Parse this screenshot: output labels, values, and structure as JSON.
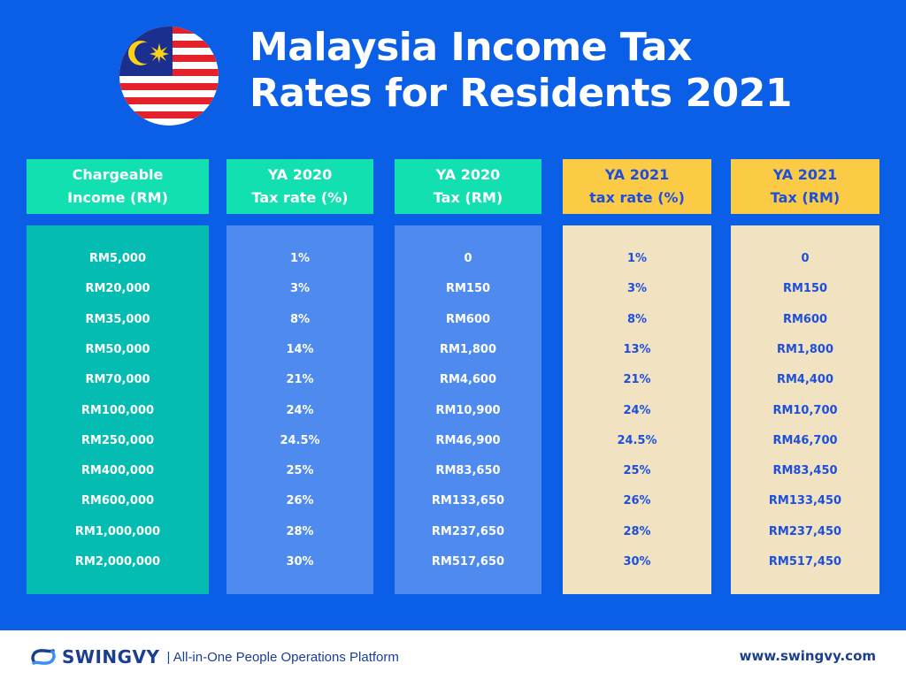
{
  "title": {
    "line1": "Malaysia Income Tax",
    "line2": "Rates for Residents 2021"
  },
  "columns": [
    {
      "header1": "Chargeable",
      "header2": "Income (RM)",
      "values": [
        "RM5,000",
        "RM20,000",
        "RM35,000",
        "RM50,000",
        "RM70,000",
        "RM100,000",
        "RM250,000",
        "RM400,000",
        "RM600,000",
        "RM1,000,000",
        "RM2,000,000"
      ]
    },
    {
      "header1": "YA 2020",
      "header2": "Tax rate (%)",
      "values": [
        "1%",
        "3%",
        "8%",
        "14%",
        "21%",
        "24%",
        "24.5%",
        "25%",
        "26%",
        "28%",
        "30%"
      ]
    },
    {
      "header1": "YA 2020",
      "header2": "Tax (RM)",
      "values": [
        "0",
        "RM150",
        "RM600",
        "RM1,800",
        "RM4,600",
        "RM10,900",
        "RM46,900",
        "RM83,650",
        "RM133,650",
        "RM237,650",
        "RM517,650"
      ]
    },
    {
      "header1": "YA 2021",
      "header2": "tax rate (%)",
      "values": [
        "1%",
        "3%",
        "8%",
        "13%",
        "21%",
        "24%",
        "24.5%",
        "25%",
        "26%",
        "28%",
        "30%"
      ]
    },
    {
      "header1": "YA 2021",
      "header2": "Tax (RM)",
      "values": [
        "0",
        "RM150",
        "RM600",
        "RM1,800",
        "RM4,400",
        "RM10,700",
        "RM46,700",
        "RM83,450",
        "RM133,450",
        "RM237,450",
        "RM517,450"
      ]
    }
  ],
  "footer": {
    "brand": "SWINGVY",
    "tagline": "| All-in-One People Operations Platform",
    "url": "www.swingvy.com"
  },
  "colors": {
    "background": "#0b5fe6",
    "header_teal": "#13e0b0",
    "header_yellow": "#fccb45",
    "body_teal": "#05bcb2",
    "body_blue": "#4f8bef",
    "body_cream": "#f1e3c2",
    "text_blue": "#1d4fdc"
  },
  "icons": {
    "flag": "malaysia-flag-icon",
    "logo": "swingvy-logo-icon"
  }
}
